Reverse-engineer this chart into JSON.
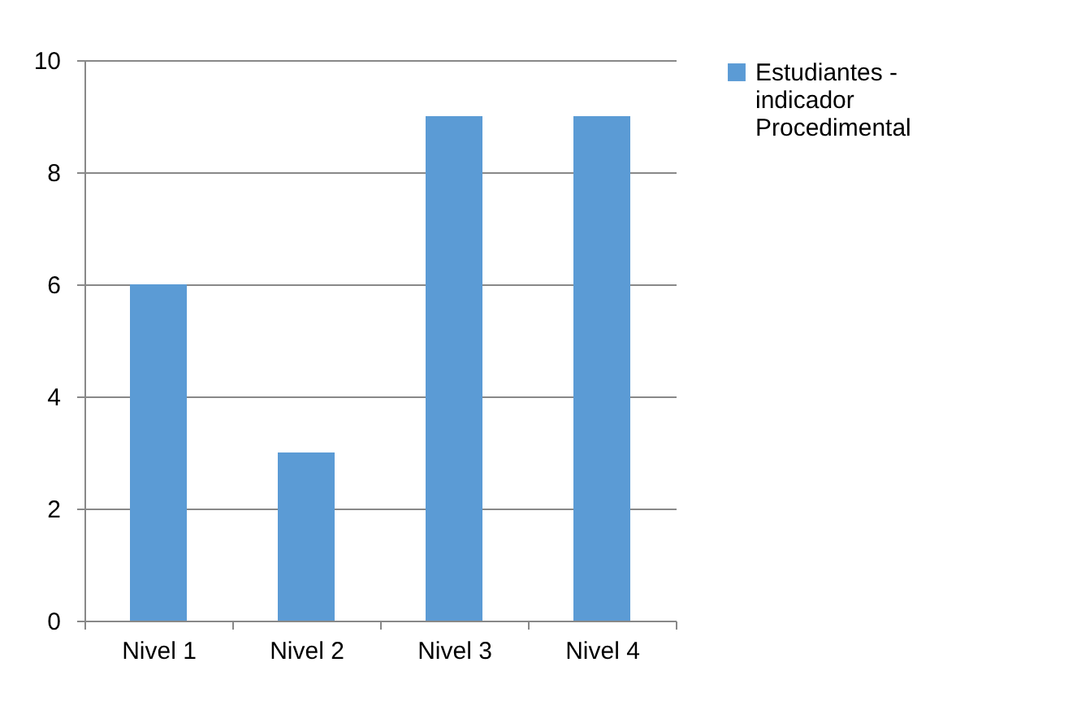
{
  "chart_data": {
    "type": "bar",
    "categories": [
      "Nivel 1",
      "Nivel 2",
      "Nivel 3",
      "Nivel 4"
    ],
    "series": [
      {
        "name": "Estudiantes - indicador Procedimental",
        "color": "#5b9bd5",
        "values": [
          6,
          3,
          9,
          9
        ]
      }
    ],
    "ylim": [
      0,
      10
    ],
    "yticks": [
      0,
      2,
      4,
      6,
      8,
      10
    ],
    "grid": "y",
    "legend": "right"
  }
}
